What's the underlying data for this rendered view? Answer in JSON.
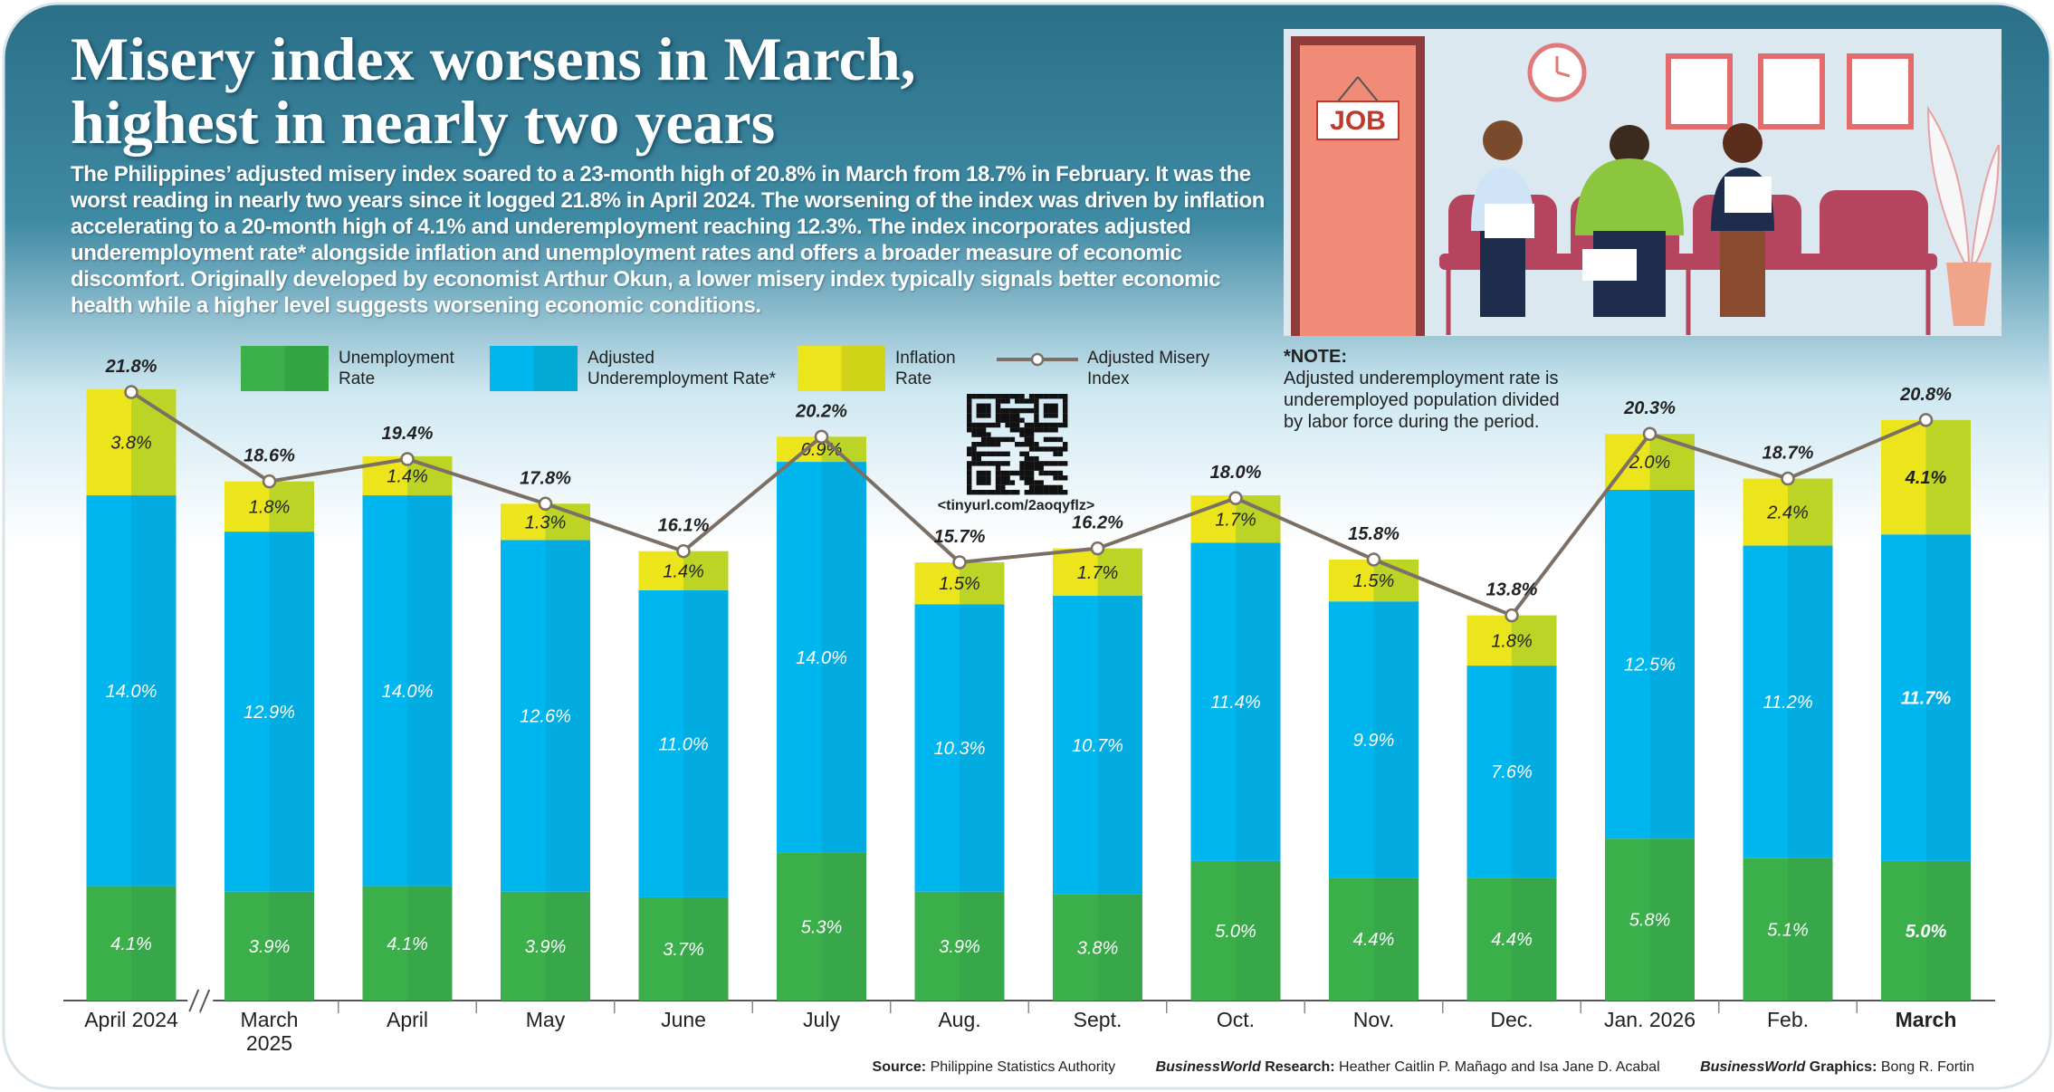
{
  "header": {
    "title": "Misery index worsens in March, highest in nearly two years",
    "body": "The Philippines’ adjusted misery index soared to a 23-month high of 20.8% in March from 18.7% in February. It was the worst reading in nearly two years since it logged 21.8% in April 2024. The worsening of the index was driven by inflation accelerating to a 20-month high of 4.1% and underemployment reaching 12.3%. The index incorporates adjusted underemployment rate* alongside inflation and unemployment rates and offers a broader measure of economic discomfort. Originally developed by economist Arthur Okun, a lower misery index typically signals better economic health while a higher level suggests worsening economic conditions."
  },
  "illustration": {
    "sign": "JOB"
  },
  "note": {
    "label": "*NOTE:",
    "text": "Adjusted underemployment rate is underemployed population divided by labor force during the period."
  },
  "qr_link": "<tinyurl.com/2aoqyflz>",
  "credits": [
    {
      "label": "Source:",
      "text": "Philippine Statistics Authority"
    },
    {
      "brand": "BusinessWorld",
      "label": "Research:",
      "text": "Heather Caitlin P. Mañago and Isa Jane D. Acabal"
    },
    {
      "brand": "BusinessWorld",
      "label": "Graphics:",
      "text": "Bong R. Fortin"
    }
  ],
  "chart_data": {
    "type": "stacked-bar-line",
    "categories": [
      "April 2024",
      "March 2025",
      "April",
      "May",
      "June",
      "July",
      "Aug.",
      "Sept.",
      "Oct.",
      "Nov.",
      "Dec.",
      "Jan. 2026",
      "Feb.",
      "March"
    ],
    "series": [
      {
        "name": "Unemployment Rate",
        "color": "#3bb04a",
        "kind": "bar",
        "values": [
          4.1,
          3.9,
          4.1,
          3.9,
          3.7,
          5.3,
          3.9,
          3.8,
          5.0,
          4.4,
          4.4,
          5.8,
          5.1,
          5.0
        ],
        "value_labels": [
          "4.1%",
          "3.9%",
          "4.1%",
          "3.9%",
          "3.7%",
          "5.3%",
          "3.9%",
          "3.8%",
          "5.0%",
          "4.4%",
          "4.4%",
          "5.8%",
          "5.1%",
          "5.0%"
        ]
      },
      {
        "name": "Adjusted Underemployment Rate*",
        "color": "#00b6ee",
        "kind": "bar",
        "values": [
          14.0,
          12.9,
          14.0,
          12.6,
          11.0,
          14.0,
          10.3,
          10.7,
          11.4,
          9.9,
          7.6,
          12.5,
          11.2,
          11.7
        ],
        "value_labels": [
          "14.0%",
          "12.9%",
          "14.0%",
          "12.6%",
          "11.0%",
          "14.0%",
          "10.3%",
          "10.7%",
          "11.4%",
          "9.9%",
          "7.6%",
          "12.5%",
          "11.2%",
          "11.7%"
        ]
      },
      {
        "name": "Inflation Rate",
        "color": "#ede51c",
        "kind": "bar",
        "values": [
          3.8,
          1.8,
          1.4,
          1.3,
          1.4,
          0.9,
          1.5,
          1.7,
          1.7,
          1.5,
          1.8,
          2.0,
          2.4,
          4.1
        ],
        "value_labels": [
          "3.8%",
          "1.8%",
          "1.4%",
          "1.3%",
          "1.4%",
          "0.9%",
          "1.5%",
          "1.7%",
          "1.7%",
          "1.5%",
          "1.8%",
          "2.0%",
          "2.4%",
          "4.1%"
        ]
      },
      {
        "name": "Adjusted Misery Index",
        "color": "#7b6f66",
        "kind": "line",
        "values": [
          21.8,
          18.6,
          19.4,
          17.8,
          16.1,
          20.2,
          15.7,
          16.2,
          18.0,
          15.8,
          13.8,
          20.3,
          18.7,
          20.8
        ],
        "value_labels": [
          "21.8%",
          "18.6%",
          "19.4%",
          "17.8%",
          "16.1%",
          "20.2%",
          "15.7%",
          "16.2%",
          "18.0%",
          "15.8%",
          "13.8%",
          "20.3%",
          "18.7%",
          "20.8%"
        ]
      }
    ]
  }
}
